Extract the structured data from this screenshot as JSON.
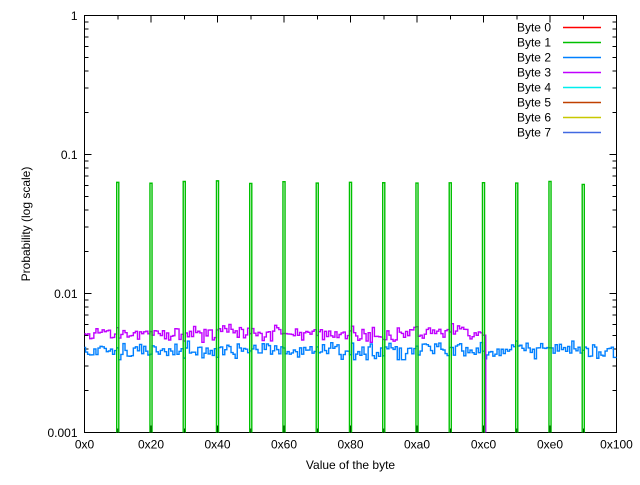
{
  "figure": {
    "background_color": "#ffffff",
    "axis_color": "#000000"
  },
  "chart_data": {
    "type": "line",
    "line_style": "histeps",
    "title": "",
    "xlabel": "Value of the byte",
    "ylabel": "Probability (log scale)",
    "x_axis": {
      "min": 0,
      "max": 256,
      "major_ticks": [
        {
          "value": 0,
          "label": "0x0"
        },
        {
          "value": 32,
          "label": "0x20"
        },
        {
          "value": 64,
          "label": "0x40"
        },
        {
          "value": 96,
          "label": "0x60"
        },
        {
          "value": 128,
          "label": "0x80"
        },
        {
          "value": 160,
          "label": "0xa0"
        },
        {
          "value": 192,
          "label": "0xc0"
        },
        {
          "value": 224,
          "label": "0xe0"
        },
        {
          "value": 256,
          "label": "0x100"
        }
      ],
      "minor_tick_step": 16
    },
    "y_axis": {
      "scale": "log",
      "min": 0.001,
      "max": 1,
      "major_ticks": [
        {
          "value": 1,
          "label": "1"
        },
        {
          "value": 0.1,
          "label": "0.1"
        },
        {
          "value": 0.01,
          "label": "0.01"
        },
        {
          "value": 0.001,
          "label": "0.001"
        }
      ],
      "minor_ticks": "log sub-decade marks 2-9 per decade, mirrored on right border"
    },
    "legend": {
      "position": "top-right-inside",
      "entries": [
        {
          "label": "Byte 0",
          "color": "#ff0000"
        },
        {
          "label": "Byte 1",
          "color": "#00c000"
        },
        {
          "label": "Byte 2",
          "color": "#0080ff"
        },
        {
          "label": "Byte 3",
          "color": "#c000ff"
        },
        {
          "label": "Byte 4",
          "color": "#00eeee"
        },
        {
          "label": "Byte 5",
          "color": "#c04000"
        },
        {
          "label": "Byte 6",
          "color": "#c8c800"
        },
        {
          "label": "Byte 7",
          "color": "#4169e1"
        }
      ]
    },
    "series": [
      {
        "name": "Byte 1",
        "color": "#00c000",
        "pattern": "spikes",
        "spike_x": [
          16,
          32,
          48,
          64,
          80,
          96,
          112,
          128,
          144,
          160,
          176,
          192,
          208,
          224,
          240
        ],
        "spike_x_hex": [
          "0x10",
          "0x20",
          "0x30",
          "0x40",
          "0x50",
          "0x60",
          "0x70",
          "0x80",
          "0x90",
          "0xa0",
          "0xb0",
          "0xc0",
          "0xd0",
          "0xe0",
          "0xf0"
        ],
        "spike_probability": 0.0625,
        "spike_height_jitter": 0.015,
        "baseline_probability": "below 0.001 (off scale between spikes)"
      },
      {
        "name": "Byte 2",
        "color": "#0080ff",
        "pattern": "noisy-uniform",
        "x_start": 0,
        "x_end": 255,
        "mean_probability": 0.0039,
        "relative_noise": 0.07
      },
      {
        "name": "Byte 3",
        "color": "#c000ff",
        "pattern": "noisy-uniform",
        "x_start": 0,
        "x_end": 192,
        "mean_probability": 0.0052,
        "relative_noise": 0.07,
        "cutoff": true,
        "cutoff_note": "drops below 0.001 at 0xc0"
      }
    ],
    "series_without_visible_curve": [
      "Byte 0",
      "Byte 4",
      "Byte 5",
      "Byte 6",
      "Byte 7"
    ]
  }
}
